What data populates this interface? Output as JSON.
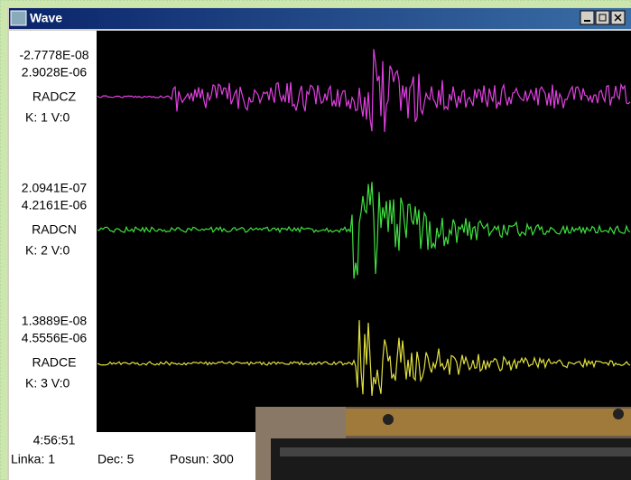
{
  "window": {
    "title": "Wave"
  },
  "channels": [
    {
      "min": "-2.7778E-08",
      "max": "2.9028E-06",
      "name": "RADCZ",
      "info": "K:  1 V:0"
    },
    {
      "min": "2.0941E-07",
      "max": "4.2161E-06",
      "name": "RADCN",
      "info": "K:  2 V:0"
    },
    {
      "min": "1.3889E-08",
      "max": "4.5556E-06",
      "name": "RADCE",
      "info": "K:  3 V:0"
    }
  ],
  "time": "4:56:51",
  "status": {
    "linka": "Linka: 1",
    "dec": "Dec: 5",
    "posun": "Posun: 300"
  }
}
